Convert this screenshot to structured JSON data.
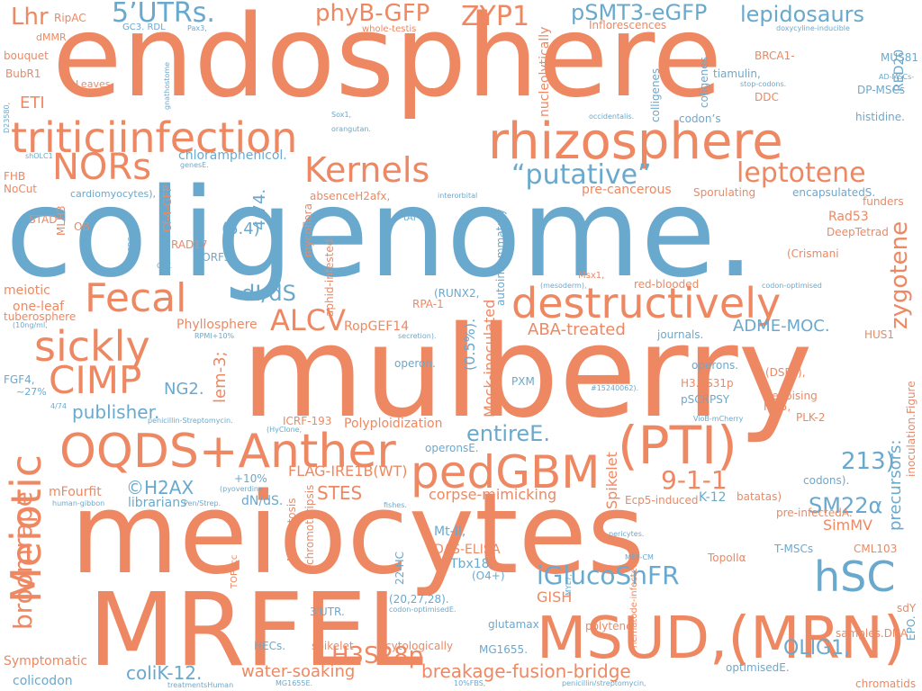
{
  "colors": {
    "orange": "#ee8862",
    "blue": "#6aa9ce",
    "background": "#ffffff"
  },
  "words": [
    {
      "text": "endosphere",
      "color": "orange",
      "orientation": "horizontal"
    },
    {
      "text": "coligenome.",
      "color": "blue",
      "orientation": "horizontal"
    },
    {
      "text": "mulberry",
      "color": "orange",
      "orientation": "horizontal"
    },
    {
      "text": "meiocytes",
      "color": "orange",
      "orientation": "horizontal"
    },
    {
      "text": "MRFEL",
      "color": "orange",
      "orientation": "horizontal"
    },
    {
      "text": "MSUD,(MRN)",
      "color": "orange",
      "orientation": "horizontal"
    },
    {
      "text": "rhizosphere",
      "color": "orange",
      "orientation": "horizontal"
    },
    {
      "text": "triticiinfection",
      "color": "orange",
      "orientation": "horizontal"
    },
    {
      "text": "OQDS+Anther",
      "color": "orange",
      "orientation": "horizontal"
    },
    {
      "text": "(PTI)",
      "color": "orange",
      "orientation": "horizontal"
    },
    {
      "text": "pedGBM",
      "color": "orange",
      "orientation": "horizontal"
    },
    {
      "text": "destructively",
      "color": "orange",
      "orientation": "horizontal"
    },
    {
      "text": "Meiotic",
      "color": "orange",
      "orientation": "vertical"
    },
    {
      "text": "sickly",
      "color": "orange",
      "orientation": "horizontal"
    },
    {
      "text": "CIMP",
      "color": "orange",
      "orientation": "horizontal"
    },
    {
      "text": "Fecal",
      "color": "orange",
      "orientation": "horizontal"
    },
    {
      "text": "Kernels",
      "color": "orange",
      "orientation": "horizontal"
    },
    {
      "text": "NORs",
      "color": "orange",
      "orientation": "horizontal"
    },
    {
      "text": "hSC",
      "color": "blue",
      "orientation": "horizontal"
    },
    {
      "text": "5’UTRs.",
      "color": "blue",
      "orientation": "horizontal"
    },
    {
      "text": "phyB-GFP",
      "color": "orange",
      "orientation": "horizontal"
    },
    {
      "text": "ZYP1",
      "color": "orange",
      "orientation": "horizontal"
    },
    {
      "text": "pSMT3-eGFP",
      "color": "blue",
      "orientation": "horizontal"
    },
    {
      "text": "lepidosaurs",
      "color": "blue",
      "orientation": "horizontal"
    },
    {
      "text": "“putative”",
      "color": "blue",
      "orientation": "horizontal"
    },
    {
      "text": "leptotene",
      "color": "orange",
      "orientation": "horizontal"
    },
    {
      "text": "zygotene",
      "color": "orange",
      "orientation": "vertical"
    },
    {
      "text": "H3S28p",
      "color": "orange",
      "orientation": "horizontal"
    },
    {
      "text": "iGlucoSnFR",
      "color": "blue",
      "orientation": "horizontal"
    },
    {
      "text": "broomrape",
      "color": "orange",
      "orientation": "vertical"
    },
    {
      "text": "ALCV",
      "color": "orange",
      "orientation": "horizontal"
    },
    {
      "text": "dI/dS",
      "color": "blue",
      "orientation": "horizontal"
    },
    {
      "text": "9-1-1",
      "color": "orange",
      "orientation": "horizontal"
    },
    {
      "text": "213)",
      "color": "blue",
      "orientation": "horizontal"
    },
    {
      "text": "SM22α",
      "color": "blue",
      "orientation": "horizontal"
    },
    {
      "text": "entireE.",
      "color": "blue",
      "orientation": "horizontal"
    },
    {
      "text": "precursors:",
      "color": "blue",
      "orientation": "vertical"
    },
    {
      "text": "breakage-fusion-bridge",
      "color": "orange",
      "orientation": "horizontal"
    },
    {
      "text": "water-soaking",
      "color": "orange",
      "orientation": "horizontal"
    },
    {
      "text": "coliK-12.",
      "color": "blue",
      "orientation": "horizontal"
    },
    {
      "text": "OLIG1,",
      "color": "blue",
      "orientation": "horizontal"
    },
    {
      "text": "publisher.",
      "color": "blue",
      "orientation": "horizontal"
    },
    {
      "text": "©H2AX",
      "color": "blue",
      "orientation": "horizontal"
    },
    {
      "text": "STES",
      "color": "orange",
      "orientation": "horizontal"
    },
    {
      "text": "Lhr",
      "color": "orange",
      "orientation": "horizontal"
    },
    {
      "text": "ETI",
      "color": "orange",
      "orientation": "horizontal"
    },
    {
      "text": "ADME-MOC.",
      "color": "blue",
      "orientation": "horizontal"
    },
    {
      "text": "ABA-treated",
      "color": "orange",
      "orientation": "horizontal"
    },
    {
      "text": "corpse-mimicking",
      "color": "orange",
      "orientation": "horizontal"
    },
    {
      "text": "FLAG-IRE1B(WT)",
      "color": "orange",
      "orientation": "horizontal"
    },
    {
      "text": "NG2.",
      "color": "blue",
      "orientation": "horizontal"
    },
    {
      "text": "lem-3;",
      "color": "orange",
      "orientation": "vertical"
    },
    {
      "text": "(6.4)",
      "color": "blue",
      "orientation": "horizontal"
    },
    {
      "text": "4/74.",
      "color": "blue",
      "orientation": "vertical"
    },
    {
      "text": "Mock-inoculated",
      "color": "orange",
      "orientation": "vertical"
    },
    {
      "text": "(0.5%).",
      "color": "blue",
      "orientation": "vertical"
    },
    {
      "text": "Rad53",
      "color": "orange",
      "orientation": "horizontal"
    },
    {
      "text": "DeepTetrad",
      "color": "orange",
      "orientation": "horizontal"
    },
    {
      "text": "(Crismani",
      "color": "orange",
      "orientation": "horizontal"
    },
    {
      "text": "SimMV",
      "color": "orange",
      "orientation": "horizontal"
    },
    {
      "text": "GISH",
      "color": "orange",
      "orientation": "horizontal"
    },
    {
      "text": "Tbx18,",
      "color": "blue",
      "orientation": "horizontal"
    },
    {
      "text": "Mt-II,",
      "color": "blue",
      "orientation": "horizontal"
    },
    {
      "text": "DAS-ELISA",
      "color": "orange",
      "orientation": "horizontal"
    },
    {
      "text": "Spikelet",
      "color": "orange",
      "orientation": "vertical"
    },
    {
      "text": "Polyploidization",
      "color": "orange",
      "orientation": "horizontal"
    },
    {
      "text": "chloramphenicol.",
      "color": "blue",
      "orientation": "horizontal"
    },
    {
      "text": "RopGEF14",
      "color": "orange",
      "orientation": "horizontal"
    },
    {
      "text": "Phyllosphere",
      "color": "orange",
      "orientation": "horizontal"
    },
    {
      "text": "pre-cancerous",
      "color": "orange",
      "orientation": "horizontal"
    },
    {
      "text": "Inflorescences",
      "color": "orange",
      "orientation": "horizontal"
    },
    {
      "text": "nucleolytically",
      "color": "orange",
      "orientation": "vertical"
    },
    {
      "text": "colligenes",
      "color": "blue",
      "orientation": "vertical"
    },
    {
      "text": "coligenes",
      "color": "blue",
      "orientation": "vertical"
    },
    {
      "text": "BRCA1-",
      "color": "orange",
      "orientation": "horizontal"
    },
    {
      "text": "tiamulin,",
      "color": "blue",
      "orientation": "horizontal"
    },
    {
      "text": "RED20",
      "color": "blue",
      "orientation": "vertical"
    },
    {
      "text": "MUS81",
      "color": "blue",
      "orientation": "horizontal"
    },
    {
      "text": "DP-MSCs",
      "color": "blue",
      "orientation": "horizontal"
    },
    {
      "text": "DDC",
      "color": "orange",
      "orientation": "horizontal"
    },
    {
      "text": "histidine.",
      "color": "blue",
      "orientation": "horizontal"
    },
    {
      "text": "encapsulatedS.",
      "color": "blue",
      "orientation": "horizontal"
    },
    {
      "text": "funders",
      "color": "orange",
      "orientation": "horizontal"
    },
    {
      "text": "Sporulating",
      "color": "orange",
      "orientation": "horizontal"
    },
    {
      "text": "codon’s",
      "color": "blue",
      "orientation": "horizontal"
    },
    {
      "text": "autoinflammatory",
      "color": "blue",
      "orientation": "vertical"
    },
    {
      "text": "absenceH2afx,",
      "color": "orange",
      "orientation": "horizontal"
    },
    {
      "text": "cardiomyocytes),",
      "color": "blue",
      "orientation": "horizontal"
    },
    {
      "text": "Cf-4-GFP",
      "color": "orange",
      "orientation": "vertical"
    },
    {
      "text": "mycoflora",
      "color": "orange",
      "orientation": "vertical"
    },
    {
      "text": "aphid-infested",
      "color": "orange",
      "orientation": "vertical"
    },
    {
      "text": "sORFs.",
      "color": "blue",
      "orientation": "horizontal"
    },
    {
      "text": "RAD17",
      "color": "orange",
      "orientation": "horizontal"
    },
    {
      "text": "meiotic",
      "color": "orange",
      "orientation": "horizontal"
    },
    {
      "text": "one-leaf",
      "color": "orange",
      "orientation": "horizontal"
    },
    {
      "text": "tuberosphere",
      "color": "orange",
      "orientation": "horizontal"
    },
    {
      "text": "FGF4,",
      "color": "blue",
      "orientation": "horizontal"
    },
    {
      "text": "~27%",
      "color": "blue",
      "orientation": "horizontal"
    },
    {
      "text": "mFourfit",
      "color": "orange",
      "orientation": "horizontal"
    },
    {
      "text": "librarians",
      "color": "blue",
      "orientation": "horizontal"
    },
    {
      "text": "Symptomatic",
      "color": "orange",
      "orientation": "horizontal"
    },
    {
      "text": "colicodon",
      "color": "blue",
      "orientation": "horizontal"
    },
    {
      "text": "HECs.",
      "color": "blue",
      "orientation": "horizontal"
    },
    {
      "text": "spikelet",
      "color": "orange",
      "orientation": "horizontal"
    },
    {
      "text": "cytologically",
      "color": "orange",
      "orientation": "horizontal"
    },
    {
      "text": "MG1655.",
      "color": "blue",
      "orientation": "horizontal"
    },
    {
      "text": "optimisedE.",
      "color": "blue",
      "orientation": "horizontal"
    },
    {
      "text": "samples.DNA",
      "color": "orange",
      "orientation": "horizontal"
    },
    {
      "text": "chromatids",
      "color": "orange",
      "orientation": "horizontal"
    },
    {
      "text": "CML103",
      "color": "orange",
      "orientation": "horizontal"
    },
    {
      "text": "T-MSCs",
      "color": "blue",
      "orientation": "horizontal"
    },
    {
      "text": "TopoIIα",
      "color": "orange",
      "orientation": "horizontal"
    },
    {
      "text": "pre-infectedA.",
      "color": "orange",
      "orientation": "horizontal"
    },
    {
      "text": "batatas)",
      "color": "orange",
      "orientation": "horizontal"
    },
    {
      "text": "K-12",
      "color": "blue",
      "orientation": "horizontal"
    },
    {
      "text": "Ecp5-induced",
      "color": "orange",
      "orientation": "horizontal"
    },
    {
      "text": "codons).",
      "color": "blue",
      "orientation": "horizontal"
    },
    {
      "text": "PLK-2",
      "color": "orange",
      "orientation": "horizontal"
    },
    {
      "text": "Fgf5,",
      "color": "orange",
      "orientation": "horizontal"
    },
    {
      "text": "Denoising",
      "color": "orange",
      "orientation": "horizontal"
    },
    {
      "text": "(DSBs),",
      "color": "orange",
      "orientation": "horizontal"
    },
    {
      "text": "pSCRPSY",
      "color": "blue",
      "orientation": "horizontal"
    },
    {
      "text": "H3.3S31p",
      "color": "orange",
      "orientation": "horizontal"
    },
    {
      "text": "operons.",
      "color": "blue",
      "orientation": "horizontal"
    },
    {
      "text": "HUS1",
      "color": "orange",
      "orientation": "horizontal"
    },
    {
      "text": "inoculation.Figure",
      "color": "orange",
      "orientation": "vertical"
    },
    {
      "text": "journals.",
      "color": "blue",
      "orientation": "horizontal"
    },
    {
      "text": "red-blooded",
      "color": "orange",
      "orientation": "horizontal"
    },
    {
      "text": "PXM",
      "color": "blue",
      "orientation": "horizontal"
    },
    {
      "text": "operon.",
      "color": "blue",
      "orientation": "horizontal"
    },
    {
      "text": "RPA-1",
      "color": "orange",
      "orientation": "horizontal"
    },
    {
      "text": "(RUNX2,",
      "color": "blue",
      "orientation": "horizontal"
    },
    {
      "text": "+10%",
      "color": "blue",
      "orientation": "horizontal"
    },
    {
      "text": "dN/dS.",
      "color": "blue",
      "orientation": "horizontal"
    },
    {
      "text": "ICRF-193",
      "color": "orange",
      "orientation": "horizontal"
    },
    {
      "text": "operonsE.",
      "color": "blue",
      "orientation": "horizontal"
    },
    {
      "text": "Necroptosis",
      "color": "orange",
      "orientation": "vertical"
    },
    {
      "text": "chromothripsis",
      "color": "orange",
      "orientation": "vertical"
    },
    {
      "text": "22-HC",
      "color": "blue",
      "orientation": "vertical"
    },
    {
      "text": "(O4+)",
      "color": "blue",
      "orientation": "horizontal"
    },
    {
      "text": "(20,27,28).",
      "color": "blue",
      "orientation": "horizontal"
    },
    {
      "text": "3'UTR.",
      "color": "blue",
      "orientation": "horizontal"
    },
    {
      "text": "glutamax",
      "color": "blue",
      "orientation": "horizontal"
    },
    {
      "text": "polytene",
      "color": "orange",
      "orientation": "horizontal"
    },
    {
      "text": "sdY",
      "color": "orange",
      "orientation": "horizontal"
    },
    {
      "text": "EPO.",
      "color": "blue",
      "orientation": "vertical"
    },
    {
      "text": "bouquet",
      "color": "orange",
      "orientation": "horizontal"
    },
    {
      "text": "BubR1",
      "color": "orange",
      "orientation": "horizontal"
    },
    {
      "text": "FHB",
      "color": "orange",
      "orientation": "horizontal"
    },
    {
      "text": "NoCut",
      "color": "orange",
      "orientation": "horizontal"
    },
    {
      "text": "STAD",
      "color": "orange",
      "orientation": "horizontal"
    },
    {
      "text": "MLH3",
      "color": "orange",
      "orientation": "vertical"
    },
    {
      "text": "OB",
      "color": "orange",
      "orientation": "horizontal"
    },
    {
      "text": "RipAC",
      "color": "orange",
      "orientation": "horizontal"
    },
    {
      "text": "dMMR",
      "color": "orange",
      "orientation": "horizontal"
    },
    {
      "text": "Leaves",
      "color": "orange",
      "orientation": "horizontal"
    },
    {
      "text": "GC3. RDL",
      "color": "blue",
      "orientation": "horizontal"
    },
    {
      "text": "Pax3,",
      "color": "blue",
      "orientation": "horizontal"
    },
    {
      "text": "whole-testis",
      "color": "orange",
      "orientation": "horizontal"
    },
    {
      "text": "doxycyline-inducible",
      "color": "blue",
      "orientation": "horizontal"
    },
    {
      "text": "AD-MSCs-",
      "color": "blue",
      "orientation": "horizontal"
    },
    {
      "text": "stop-codons.",
      "color": "blue",
      "orientation": "horizontal"
    },
    {
      "text": "occidentalis.",
      "color": "blue",
      "orientation": "horizontal"
    },
    {
      "text": "gnathostome",
      "color": "blue",
      "orientation": "vertical"
    },
    {
      "text": "D23580,",
      "color": "blue",
      "orientation": "vertical"
    },
    {
      "text": "Sox1,",
      "color": "blue",
      "orientation": "horizontal"
    },
    {
      "text": "orangutan.",
      "color": "blue",
      "orientation": "horizontal"
    },
    {
      "text": "shOLC1",
      "color": "blue",
      "orientation": "horizontal"
    },
    {
      "text": "genesE.",
      "color": "blue",
      "orientation": "horizontal"
    },
    {
      "text": "interorbital",
      "color": "blue",
      "orientation": "horizontal"
    },
    {
      "text": "tAI",
      "color": "blue",
      "orientation": "horizontal"
    },
    {
      "text": "CDSs.",
      "color": "blue",
      "orientation": "vertical"
    },
    {
      "text": "OFT.",
      "color": "blue",
      "orientation": "horizontal"
    },
    {
      "text": "Msx1,",
      "color": "orange",
      "orientation": "horizontal"
    },
    {
      "text": "(mesoderm),",
      "color": "blue",
      "orientation": "horizontal"
    },
    {
      "text": "codon-optimised",
      "color": "blue",
      "orientation": "horizontal"
    },
    {
      "text": "(10ng/ml,",
      "color": "blue",
      "orientation": "horizontal"
    },
    {
      "text": "RPMI+10%",
      "color": "blue",
      "orientation": "horizontal"
    },
    {
      "text": "secretion).",
      "color": "blue",
      "orientation": "horizontal"
    },
    {
      "text": "#15240062).",
      "color": "blue",
      "orientation": "horizontal"
    },
    {
      "text": "4/74",
      "color": "blue",
      "orientation": "horizontal"
    },
    {
      "text": "penicillin-Streptomycin.",
      "color": "blue",
      "orientation": "horizontal"
    },
    {
      "text": "(HyClone,",
      "color": "blue",
      "orientation": "horizontal"
    },
    {
      "text": "VioB-mCherry",
      "color": "blue",
      "orientation": "horizontal"
    },
    {
      "text": "(pyoverdine",
      "color": "blue",
      "orientation": "horizontal"
    },
    {
      "text": "human-gibbon",
      "color": "blue",
      "orientation": "horizontal"
    },
    {
      "text": "Pen/Strep.",
      "color": "blue",
      "orientation": "horizontal"
    },
    {
      "text": "fishes.",
      "color": "blue",
      "orientation": "horizontal"
    },
    {
      "text": "pericytes.",
      "color": "blue",
      "orientation": "horizontal"
    },
    {
      "text": "nematode-infected",
      "color": "orange",
      "orientation": "vertical"
    },
    {
      "text": "TOP2cc",
      "color": "orange",
      "orientation": "vertical"
    },
    {
      "text": "MYL7,",
      "color": "blue",
      "orientation": "vertical"
    },
    {
      "text": "MEF-CM",
      "color": "blue",
      "orientation": "horizontal"
    },
    {
      "text": "codon-optimisedE.",
      "color": "blue",
      "orientation": "horizontal"
    },
    {
      "text": "treatmentsHuman",
      "color": "blue",
      "orientation": "horizontal"
    },
    {
      "text": "MG1655E.",
      "color": "blue",
      "orientation": "horizontal"
    },
    {
      "text": "10%FBS,",
      "color": "blue",
      "orientation": "horizontal"
    },
    {
      "text": "penicillin/streptomycin,",
      "color": "blue",
      "orientation": "horizontal"
    }
  ]
}
